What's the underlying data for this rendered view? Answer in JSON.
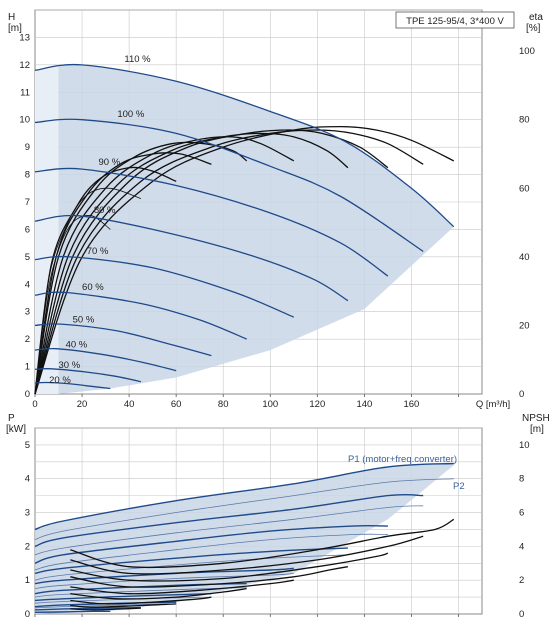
{
  "title": "TPE 125-95/4, 3*400 V",
  "colors": {
    "envelope": "#c9d6e6",
    "envelope_light": "#e8eef6",
    "curve": "#1f4a8a",
    "eta": "#111111",
    "grid": "#c8c8c8"
  },
  "chart_data": [
    {
      "type": "line",
      "name": "QH",
      "y_axis_label": "H",
      "y_axis_unit": "[m]",
      "y2_axis_label": "eta",
      "y2_axis_unit": "[%]",
      "x_axis_label": "Q [m³/h]",
      "xlim": [
        0,
        190
      ],
      "ylim": [
        0,
        14
      ],
      "y2lim": [
        0,
        112
      ],
      "x_ticks": [
        "0",
        "20",
        "40",
        "60",
        "80",
        "100",
        "120",
        "140",
        "160",
        "Q [m³/h]"
      ],
      "y_ticks": [
        "0",
        "1",
        "2",
        "3",
        "4",
        "5",
        "6",
        "7",
        "8",
        "9",
        "10",
        "11",
        "12",
        "13"
      ],
      "y2_ticks": [
        "0",
        "20",
        "40",
        "60",
        "80",
        "100"
      ],
      "grid": true,
      "speed_labels": [
        "110 %",
        "100 %",
        "90 %",
        "80 %",
        "70 %",
        "60 %",
        "50 %",
        "40 %",
        "30 %",
        "20 %"
      ],
      "speed_curves": [
        {
          "label": "110 %",
          "x": [
            0,
            20,
            60,
            100,
            132,
            160,
            178
          ],
          "y": [
            11.8,
            12.0,
            11.4,
            10.3,
            9.2,
            7.5,
            6.1
          ]
        },
        {
          "label": "100 %",
          "x": [
            0,
            20,
            60,
            100,
            130,
            165
          ],
          "y": [
            9.9,
            10.0,
            9.5,
            8.3,
            7.2,
            5.2
          ]
        },
        {
          "label": "90 %",
          "x": [
            0,
            20,
            60,
            100,
            130,
            150
          ],
          "y": [
            8.1,
            8.2,
            7.6,
            6.6,
            5.5,
            4.3
          ]
        },
        {
          "label": "80 %",
          "x": [
            0,
            18,
            50,
            90,
            118,
            133
          ],
          "y": [
            6.3,
            6.5,
            6.0,
            5.1,
            4.2,
            3.4
          ]
        },
        {
          "label": "70 %",
          "x": [
            0,
            15,
            50,
            85,
            110
          ],
          "y": [
            4.9,
            5.0,
            4.6,
            3.7,
            2.8
          ]
        },
        {
          "label": "60 %",
          "x": [
            0,
            13,
            45,
            70,
            90
          ],
          "y": [
            3.6,
            3.7,
            3.3,
            2.7,
            2.0
          ]
        },
        {
          "label": "50 %",
          "x": [
            0,
            11,
            35,
            58,
            75
          ],
          "y": [
            2.5,
            2.55,
            2.3,
            1.8,
            1.4
          ]
        },
        {
          "label": "40 %",
          "x": [
            0,
            9,
            28,
            46,
            60
          ],
          "y": [
            1.6,
            1.65,
            1.45,
            1.15,
            0.85
          ]
        },
        {
          "label": "30 %",
          "x": [
            0,
            7,
            22,
            34,
            45
          ],
          "y": [
            0.9,
            0.92,
            0.8,
            0.65,
            0.45
          ]
        },
        {
          "label": "20 %",
          "x": [
            0,
            5,
            14,
            22,
            32
          ],
          "y": [
            0.4,
            0.42,
            0.38,
            0.3,
            0.2
          ]
        }
      ],
      "eta_curves": [
        {
          "x": [
            0,
            20,
            50,
            80,
            110,
            130,
            145,
            160,
            178
          ],
          "y": [
            0,
            40,
            62,
            72,
            77,
            78,
            77,
            74,
            68
          ]
        },
        {
          "x": [
            0,
            18,
            45,
            75,
            100,
            120,
            135,
            150,
            165
          ],
          "y": [
            0,
            40,
            62,
            72,
            76,
            77,
            76,
            73,
            67
          ]
        },
        {
          "x": [
            0,
            16,
            40,
            65,
            90,
            108,
            122,
            138,
            150
          ],
          "y": [
            0,
            40,
            62,
            72,
            76,
            77,
            76,
            72,
            66
          ]
        },
        {
          "x": [
            0,
            14,
            35,
            58,
            80,
            96,
            110,
            124,
            133
          ],
          "y": [
            0,
            40,
            61,
            71,
            75,
            76,
            75,
            71,
            66
          ]
        },
        {
          "x": [
            0,
            12,
            30,
            50,
            68,
            84,
            96,
            110
          ],
          "y": [
            0,
            40,
            60,
            70,
            74,
            75,
            73,
            68
          ]
        },
        {
          "x": [
            0,
            10,
            26,
            42,
            58,
            72,
            84,
            90
          ],
          "y": [
            0,
            40,
            60,
            69,
            73,
            73,
            71,
            68
          ]
        },
        {
          "x": [
            0,
            9,
            22,
            36,
            50,
            62,
            75
          ],
          "y": [
            0,
            40,
            58,
            67,
            70,
            70,
            67
          ]
        },
        {
          "x": [
            0,
            7,
            18,
            28,
            40,
            50,
            60
          ],
          "y": [
            0,
            38,
            55,
            63,
            66,
            65,
            62
          ]
        },
        {
          "x": [
            0,
            6,
            14,
            22,
            32,
            45
          ],
          "y": [
            0,
            34,
            50,
            58,
            60,
            57
          ]
        },
        {
          "x": [
            0,
            5,
            10,
            16,
            24,
            32
          ],
          "y": [
            0,
            28,
            42,
            50,
            52,
            48
          ]
        }
      ]
    },
    {
      "type": "line",
      "name": "Power-NPSH",
      "y_axis_label": "P",
      "y_axis_unit": "[kW]",
      "y2_axis_label": "NPSH",
      "y2_axis_unit": "[m]",
      "xlim": [
        0,
        190
      ],
      "ylim": [
        0,
        5.5
      ],
      "y2lim": [
        0,
        11
      ],
      "y_ticks": [
        "0",
        "1",
        "2",
        "3",
        "4",
        "5"
      ],
      "y2_ticks": [
        "0",
        "2",
        "4",
        "6",
        "8",
        "10"
      ],
      "grid": true,
      "series_labels": [
        "P1 (motor+freq.converter)",
        "P2"
      ],
      "p1_curves": [
        {
          "x": [
            0,
            12,
            60,
            110,
            150,
            178
          ],
          "y": [
            2.5,
            2.75,
            3.35,
            3.85,
            4.35,
            4.45
          ]
        },
        {
          "x": [
            0,
            12,
            60,
            110,
            150,
            165
          ],
          "y": [
            2.0,
            2.25,
            2.7,
            3.1,
            3.5,
            3.5
          ]
        },
        {
          "x": [
            0,
            12,
            60,
            100,
            135,
            150
          ],
          "y": [
            1.5,
            1.75,
            2.15,
            2.45,
            2.6,
            2.6
          ]
        },
        {
          "x": [
            0,
            12,
            60,
            100,
            133
          ],
          "y": [
            1.2,
            1.35,
            1.65,
            1.85,
            1.95
          ]
        },
        {
          "x": [
            0,
            12,
            60,
            100,
            110
          ],
          "y": [
            0.9,
            1.0,
            1.2,
            1.3,
            1.35
          ]
        },
        {
          "x": [
            0,
            12,
            60,
            90
          ],
          "y": [
            0.6,
            0.7,
            0.85,
            0.9
          ]
        },
        {
          "x": [
            0,
            12,
            50,
            75
          ],
          "y": [
            0.4,
            0.45,
            0.55,
            0.6
          ]
        },
        {
          "x": [
            0,
            12,
            45,
            60
          ],
          "y": [
            0.22,
            0.27,
            0.33,
            0.35
          ]
        },
        {
          "x": [
            0,
            12,
            35,
            45
          ],
          "y": [
            0.12,
            0.15,
            0.18,
            0.19
          ]
        },
        {
          "x": [
            0,
            10,
            25,
            32
          ],
          "y": [
            0.05,
            0.06,
            0.08,
            0.08
          ]
        }
      ],
      "p2_curves": [
        {
          "x": [
            0,
            12,
            60,
            110,
            150,
            178
          ],
          "y": [
            2.2,
            2.45,
            3.0,
            3.5,
            3.9,
            4.0
          ]
        },
        {
          "x": [
            0,
            12,
            60,
            110,
            150,
            165
          ],
          "y": [
            1.75,
            1.95,
            2.4,
            2.8,
            3.15,
            3.2
          ]
        },
        {
          "x": [
            0,
            12,
            60,
            100,
            135,
            150
          ],
          "y": [
            1.3,
            1.5,
            1.9,
            2.2,
            2.35,
            2.35
          ]
        },
        {
          "x": [
            0,
            12,
            60,
            100,
            133
          ],
          "y": [
            1.0,
            1.15,
            1.45,
            1.65,
            1.75
          ]
        },
        {
          "x": [
            0,
            12,
            60,
            100,
            110
          ],
          "y": [
            0.75,
            0.85,
            1.05,
            1.15,
            1.2
          ]
        },
        {
          "x": [
            0,
            12,
            60,
            90
          ],
          "y": [
            0.5,
            0.58,
            0.72,
            0.78
          ]
        },
        {
          "x": [
            0,
            12,
            50,
            75
          ],
          "y": [
            0.32,
            0.37,
            0.46,
            0.5
          ]
        },
        {
          "x": [
            0,
            12,
            45,
            60
          ],
          "y": [
            0.18,
            0.22,
            0.28,
            0.3
          ]
        }
      ],
      "npsh_curves": [
        {
          "x": [
            15,
            40,
            80,
            120,
            150,
            170,
            178
          ],
          "y": [
            3.8,
            2.8,
            3.0,
            3.8,
            4.6,
            5.0,
            5.6
          ]
        },
        {
          "x": [
            15,
            40,
            80,
            120,
            150,
            165
          ],
          "y": [
            3.2,
            2.4,
            2.6,
            3.2,
            4.0,
            4.6
          ]
        },
        {
          "x": [
            15,
            40,
            80,
            120,
            145,
            150
          ],
          "y": [
            2.6,
            2.0,
            2.1,
            2.8,
            3.4,
            3.6
          ]
        },
        {
          "x": [
            15,
            40,
            80,
            110,
            125,
            133
          ],
          "y": [
            2.2,
            1.6,
            1.8,
            2.2,
            2.6,
            2.8
          ]
        },
        {
          "x": [
            15,
            40,
            70,
            100,
            110
          ],
          "y": [
            1.6,
            1.2,
            1.4,
            1.8,
            2.0
          ]
        },
        {
          "x": [
            15,
            35,
            60,
            80,
            90
          ],
          "y": [
            1.2,
            0.9,
            1.0,
            1.3,
            1.5
          ]
        },
        {
          "x": [
            15,
            30,
            50,
            70,
            75
          ],
          "y": [
            0.8,
            0.6,
            0.7,
            0.9,
            1.0
          ]
        },
        {
          "x": [
            15,
            25,
            45,
            60
          ],
          "y": [
            0.5,
            0.4,
            0.5,
            0.6
          ]
        },
        {
          "x": [
            15,
            25,
            38,
            45
          ],
          "y": [
            0.3,
            0.25,
            0.3,
            0.35
          ]
        }
      ]
    }
  ]
}
